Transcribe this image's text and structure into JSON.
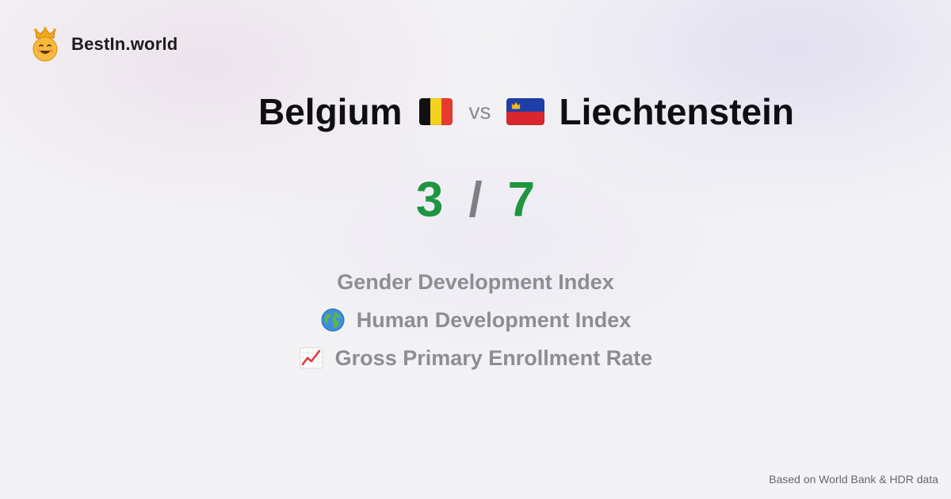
{
  "brand": {
    "name": "BestIn.world",
    "logo_icon": "smiling-crown-face-icon"
  },
  "comparison": {
    "left_country": "Belgium",
    "left_flag_icon": "belgium-flag-icon",
    "vs_label": "vs",
    "right_country": "Liechtenstein",
    "right_flag_icon": "liechtenstein-flag-icon"
  },
  "score": {
    "left": "3",
    "separator": "/",
    "right": "7"
  },
  "metrics": [
    {
      "label": "Gender Development Index",
      "icon": ""
    },
    {
      "label": "Human Development Index",
      "icon": "globe-icon"
    },
    {
      "label": "Gross Primary Enrollment Rate",
      "icon": "chart-increasing-icon"
    }
  ],
  "footer": {
    "note": "Based on World Bank & HDR data"
  },
  "colors": {
    "score_green": "#1e9640",
    "muted_gray": "#8d8d93",
    "title_black": "#0f0f12",
    "background": "#f3f3f5"
  }
}
